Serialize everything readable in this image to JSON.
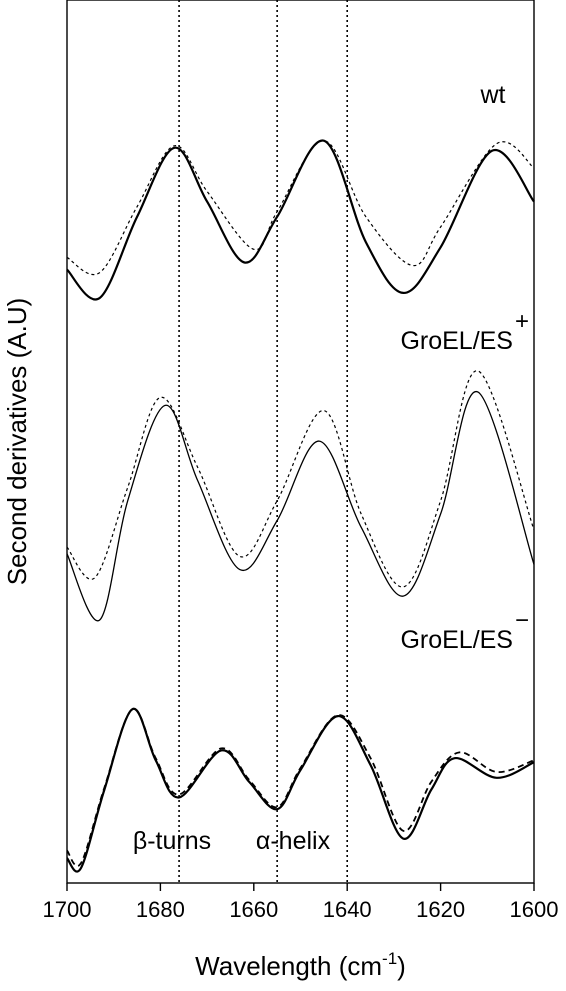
{
  "chart_data": {
    "type": "line",
    "xlabel": "Wavelength (cm",
    "xlabel_sup": "-1",
    "xlabel_close": ")",
    "ylabel": "Second derivatives (A.U)",
    "xlim": [
      1700,
      1600
    ],
    "x_reversed": true,
    "xticks": [
      1700,
      1680,
      1660,
      1640,
      1620,
      1600
    ],
    "xtick_labels": [
      "1700",
      "1680",
      "1660",
      "1640",
      "1620",
      "1600"
    ],
    "y_units": "arbitrary (stacked, offset traces)",
    "reference_lines_x": [
      1676,
      1655,
      1640
    ],
    "annotations": [
      {
        "text": "β-turns",
        "x": 1676
      },
      {
        "text": "α-helix",
        "x": 1655
      }
    ],
    "panels": [
      {
        "label": "wt",
        "label_suffix": "",
        "series": [
          {
            "style": "solid",
            "x": [
              1700,
              1693,
              1685,
              1677,
              1670,
              1662,
              1655,
              1645,
              1636,
              1628,
              1620,
              1609,
              1600
            ],
            "y": [
              -0.72,
              -1.0,
              -0.2,
              0.48,
              -0.05,
              -0.65,
              -0.2,
              0.55,
              -0.45,
              -0.95,
              -0.5,
              0.45,
              -0.05
            ]
          },
          {
            "style": "dotted",
            "x": [
              1700,
              1693,
              1685,
              1677,
              1670,
              1660,
              1655,
              1645,
              1636,
              1626,
              1620,
              1608,
              1600
            ],
            "y": [
              -0.6,
              -0.75,
              -0.1,
              0.5,
              0.05,
              -0.52,
              -0.15,
              0.55,
              -0.2,
              -0.68,
              -0.3,
              0.52,
              0.28
            ]
          }
        ]
      },
      {
        "label": "GroEL/ES",
        "label_suffix": "+",
        "series": [
          {
            "style": "solid",
            "x": [
              1700,
              1693,
              1687,
              1679,
              1672,
              1663,
              1655,
              1646,
              1637,
              1628,
              1620,
              1612,
              1600
            ],
            "y": [
              -0.5,
              -1.0,
              -0.1,
              0.62,
              0.05,
              -0.62,
              -0.25,
              0.35,
              -0.3,
              -0.82,
              -0.2,
              0.72,
              -0.58
            ]
          },
          {
            "style": "dotted",
            "x": [
              1700,
              1694,
              1687,
              1680,
              1672,
              1663,
              1655,
              1645,
              1637,
              1628,
              1620,
              1612,
              1600
            ],
            "y": [
              -0.45,
              -0.68,
              0.0,
              0.68,
              0.15,
              -0.52,
              -0.1,
              0.58,
              -0.2,
              -0.75,
              -0.1,
              0.88,
              -0.32
            ]
          }
        ]
      },
      {
        "label": "GroEL/ES",
        "label_suffix": "−",
        "series": [
          {
            "style": "solid",
            "x": [
              1700,
              1697,
              1692,
              1686,
              1681,
              1676,
              1667,
              1661,
              1655,
              1650,
              1642,
              1635,
              1628,
              1622,
              1617,
              1608,
              1600
            ],
            "y": [
              -0.9,
              -1.0,
              -0.2,
              0.62,
              0.1,
              -0.28,
              0.2,
              -0.12,
              -0.4,
              0.0,
              0.55,
              0.05,
              -0.7,
              -0.2,
              0.12,
              -0.08,
              0.08
            ]
          },
          {
            "style": "dashed",
            "x": [
              1700,
              1697,
              1692,
              1686,
              1681,
              1676,
              1667,
              1661,
              1655,
              1650,
              1642,
              1635,
              1628,
              1622,
              1616,
              1608,
              1600
            ],
            "y": [
              -0.82,
              -0.95,
              -0.18,
              0.62,
              0.12,
              -0.25,
              0.22,
              -0.1,
              -0.38,
              0.02,
              0.56,
              0.12,
              -0.62,
              -0.12,
              0.18,
              -0.02,
              0.1
            ]
          }
        ]
      }
    ]
  }
}
